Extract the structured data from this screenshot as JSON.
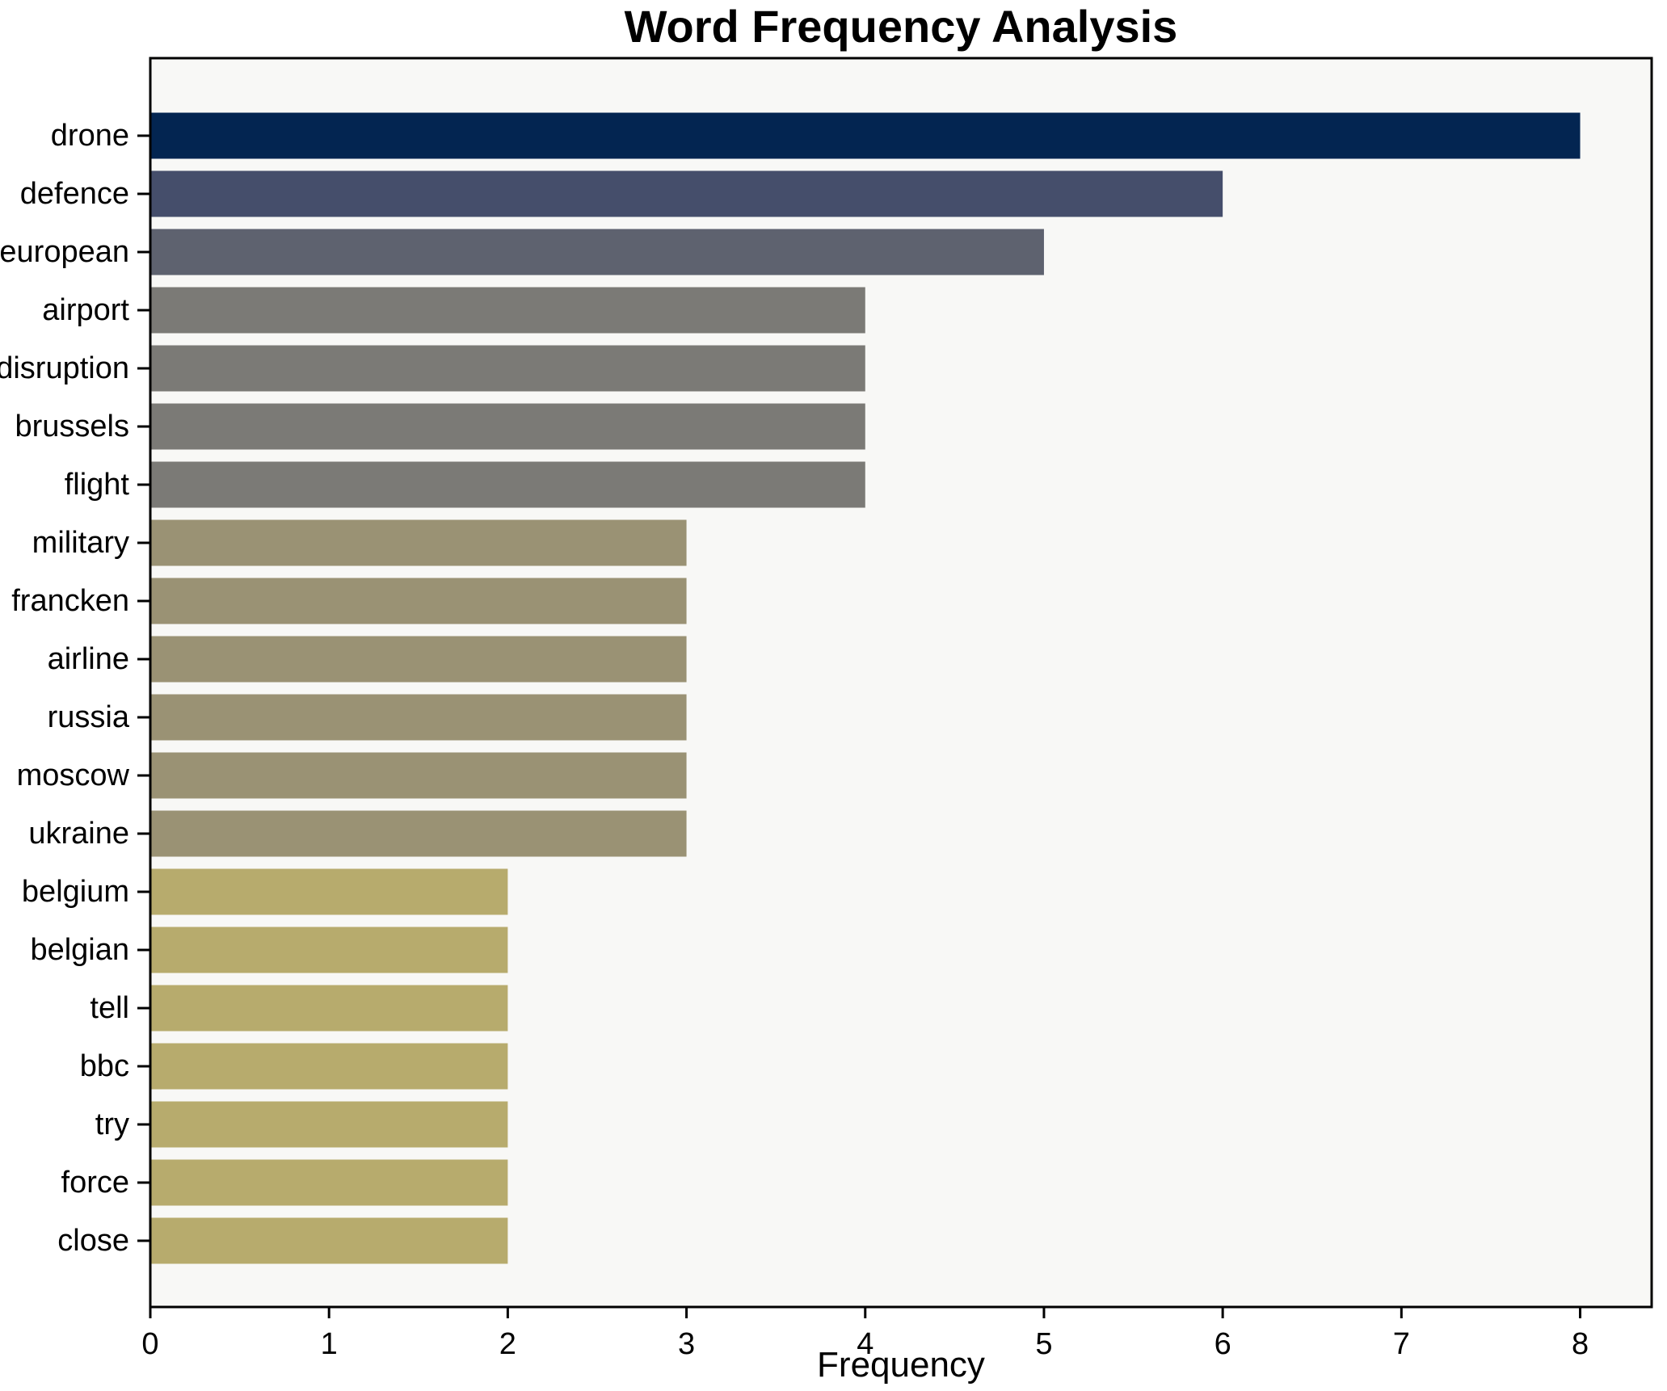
{
  "chart_data": {
    "type": "bar",
    "orientation": "horizontal",
    "title": "Word Frequency Analysis",
    "xlabel": "Frequency",
    "categories": [
      "drone",
      "defence",
      "european",
      "airport",
      "disruption",
      "brussels",
      "flight",
      "military",
      "francken",
      "airline",
      "russia",
      "moscow",
      "ukraine",
      "belgium",
      "belgian",
      "tell",
      "bbc",
      "try",
      "force",
      "close"
    ],
    "values": [
      8,
      6,
      5,
      4,
      4,
      4,
      4,
      3,
      3,
      3,
      3,
      3,
      3,
      2,
      2,
      2,
      2,
      2,
      2,
      2
    ],
    "bar_colors": [
      "#032551",
      "#454e6b",
      "#5e626f",
      "#7b7a76",
      "#7b7a76",
      "#7b7a76",
      "#7b7a76",
      "#9a9274",
      "#9a9274",
      "#9a9274",
      "#9a9274",
      "#9a9274",
      "#9a9274",
      "#b7ab6d",
      "#b7ab6d",
      "#b7ab6d",
      "#b7ab6d",
      "#b7ab6d",
      "#b7ab6d",
      "#b7ab6d"
    ],
    "value_color_map": {
      "8": "#032551",
      "6": "#454e6b",
      "5": "#5e626f",
      "4": "#7b7a76",
      "3": "#9a9274",
      "2": "#b7ab6d"
    },
    "xlim": [
      0,
      8.4
    ],
    "xticks": [
      "0",
      "1",
      "2",
      "3",
      "4",
      "5",
      "6",
      "7",
      "8"
    ],
    "grid": false,
    "legend": null,
    "colors": {
      "figure_background": "#ffffff",
      "axes_background": "#f8f8f6",
      "spine": "#000000",
      "text": "#000000"
    }
  }
}
